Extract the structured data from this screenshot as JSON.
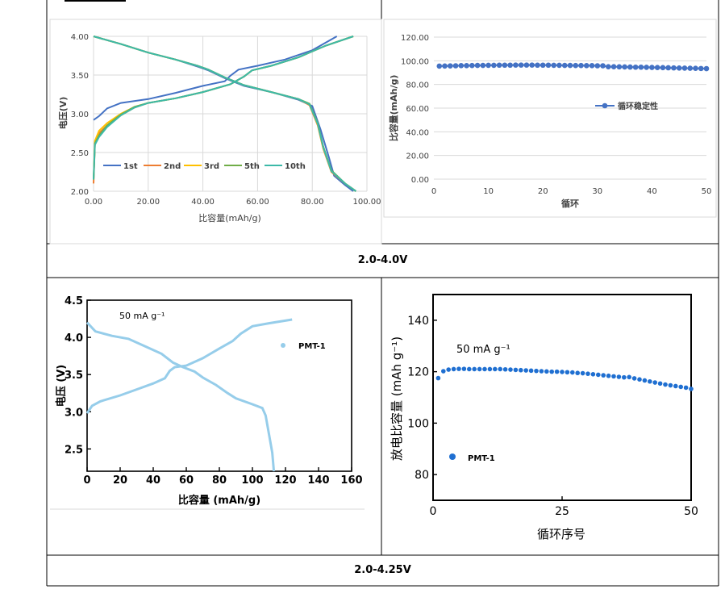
{
  "captions": {
    "row1": "2.0-4.0V",
    "row2": "2.0-4.25V"
  },
  "chart_data": [
    {
      "type": "line",
      "xlabel": "比容量(mAh/g)",
      "ylabel": "电压(V)",
      "xlim": [
        0,
        100
      ],
      "ylim": [
        2.0,
        4.0
      ],
      "x_ticks": [
        "0.00",
        "20.00",
        "40.00",
        "60.00",
        "80.00",
        "100.00"
      ],
      "y_ticks": [
        "2.00",
        "2.50",
        "3.00",
        "3.50",
        "4.00"
      ],
      "legend": "bottom-left",
      "grid": true,
      "series": [
        {
          "name": "1st",
          "color": "#4472C4",
          "charge": [
            [
              0,
              2.92
            ],
            [
              2,
              2.97
            ],
            [
              5,
              3.07
            ],
            [
              10,
              3.14
            ],
            [
              20,
              3.19
            ],
            [
              30,
              3.27
            ],
            [
              40,
              3.36
            ],
            [
              48,
              3.42
            ],
            [
              50,
              3.49
            ],
            [
              53,
              3.57
            ],
            [
              60,
              3.62
            ],
            [
              70,
              3.7
            ],
            [
              80,
              3.82
            ],
            [
              89,
              4.0
            ]
          ],
          "discharge": [
            [
              0,
              4.0
            ],
            [
              10,
              3.9
            ],
            [
              20,
              3.79
            ],
            [
              30,
              3.7
            ],
            [
              38,
              3.61
            ],
            [
              42,
              3.56
            ],
            [
              48,
              3.46
            ],
            [
              55,
              3.36
            ],
            [
              65,
              3.28
            ],
            [
              75,
              3.18
            ],
            [
              80,
              3.1
            ],
            [
              83,
              2.8
            ],
            [
              86,
              2.45
            ],
            [
              88,
              2.2
            ],
            [
              92,
              2.08
            ],
            [
              95,
              2.0
            ]
          ]
        },
        {
          "name": "2nd",
          "color": "#ED7D31",
          "charge": [
            [
              0,
              2.1
            ],
            [
              0.5,
              2.6
            ],
            [
              2,
              2.75
            ],
            [
              5,
              2.85
            ],
            [
              10,
              2.98
            ],
            [
              15,
              3.08
            ],
            [
              20,
              3.14
            ],
            [
              30,
              3.2
            ],
            [
              40,
              3.28
            ],
            [
              50,
              3.38
            ],
            [
              55,
              3.48
            ],
            [
              58,
              3.56
            ],
            [
              65,
              3.62
            ],
            [
              75,
              3.73
            ],
            [
              85,
              3.88
            ],
            [
              95,
              4.0
            ]
          ],
          "discharge": [
            [
              0,
              4.0
            ],
            [
              10,
              3.9
            ],
            [
              20,
              3.79
            ],
            [
              30,
              3.7
            ],
            [
              38,
              3.62
            ],
            [
              42,
              3.57
            ],
            [
              48,
              3.47
            ],
            [
              55,
              3.37
            ],
            [
              65,
              3.28
            ],
            [
              75,
              3.19
            ],
            [
              79,
              3.11
            ],
            [
              82,
              2.85
            ],
            [
              84,
              2.55
            ],
            [
              87,
              2.25
            ],
            [
              92,
              2.1
            ],
            [
              96,
              2.0
            ]
          ]
        },
        {
          "name": "3rd",
          "color": "#FFC000",
          "charge": [
            [
              0,
              2.15
            ],
            [
              0.5,
              2.65
            ],
            [
              2,
              2.78
            ],
            [
              5,
              2.88
            ],
            [
              10,
              3.0
            ],
            [
              15,
              3.09
            ],
            [
              20,
              3.14
            ],
            [
              30,
              3.2
            ],
            [
              40,
              3.28
            ],
            [
              50,
              3.38
            ],
            [
              55,
              3.48
            ],
            [
              58,
              3.56
            ],
            [
              65,
              3.62
            ],
            [
              75,
              3.73
            ],
            [
              85,
              3.88
            ],
            [
              95,
              4.0
            ]
          ],
          "discharge": [
            [
              0,
              4.0
            ],
            [
              10,
              3.9
            ],
            [
              20,
              3.79
            ],
            [
              30,
              3.7
            ],
            [
              38,
              3.62
            ],
            [
              42,
              3.57
            ],
            [
              48,
              3.47
            ],
            [
              55,
              3.37
            ],
            [
              65,
              3.28
            ],
            [
              75,
              3.19
            ],
            [
              79,
              3.12
            ],
            [
              82,
              2.86
            ],
            [
              84,
              2.56
            ],
            [
              87,
              2.26
            ],
            [
              92,
              2.1
            ],
            [
              96,
              2.0
            ]
          ]
        },
        {
          "name": "5th",
          "color": "#70AD47",
          "charge": [
            [
              0,
              2.15
            ],
            [
              0.5,
              2.62
            ],
            [
              2,
              2.72
            ],
            [
              5,
              2.85
            ],
            [
              10,
              2.99
            ],
            [
              15,
              3.09
            ],
            [
              20,
              3.14
            ],
            [
              30,
              3.2
            ],
            [
              40,
              3.28
            ],
            [
              50,
              3.38
            ],
            [
              55,
              3.48
            ],
            [
              58,
              3.56
            ],
            [
              65,
              3.62
            ],
            [
              75,
              3.73
            ],
            [
              85,
              3.88
            ],
            [
              95,
              4.0
            ]
          ],
          "discharge": [
            [
              0,
              4.0
            ],
            [
              10,
              3.9
            ],
            [
              20,
              3.79
            ],
            [
              30,
              3.7
            ],
            [
              38,
              3.62
            ],
            [
              42,
              3.57
            ],
            [
              48,
              3.47
            ],
            [
              55,
              3.37
            ],
            [
              65,
              3.28
            ],
            [
              75,
              3.19
            ],
            [
              79,
              3.13
            ],
            [
              82,
              2.88
            ],
            [
              84,
              2.58
            ],
            [
              87,
              2.27
            ],
            [
              92,
              2.1
            ],
            [
              96,
              2.0
            ]
          ]
        },
        {
          "name": "10th",
          "color": "#3CB9A8",
          "charge": [
            [
              0,
              2.15
            ],
            [
              0.5,
              2.6
            ],
            [
              2,
              2.7
            ],
            [
              5,
              2.83
            ],
            [
              10,
              2.98
            ],
            [
              15,
              3.08
            ],
            [
              20,
              3.14
            ],
            [
              30,
              3.2
            ],
            [
              40,
              3.28
            ],
            [
              50,
              3.38
            ],
            [
              55,
              3.48
            ],
            [
              58,
              3.56
            ],
            [
              65,
              3.62
            ],
            [
              75,
              3.73
            ],
            [
              85,
              3.88
            ],
            [
              95,
              4.0
            ]
          ],
          "discharge": [
            [
              0,
              4.0
            ],
            [
              10,
              3.9
            ],
            [
              20,
              3.79
            ],
            [
              30,
              3.7
            ],
            [
              38,
              3.62
            ],
            [
              42,
              3.57
            ],
            [
              48,
              3.47
            ],
            [
              55,
              3.37
            ],
            [
              65,
              3.28
            ],
            [
              75,
              3.19
            ],
            [
              79,
              3.12
            ],
            [
              82,
              2.87
            ],
            [
              84,
              2.57
            ],
            [
              87,
              2.26
            ],
            [
              92,
              2.1
            ],
            [
              96,
              2.0
            ]
          ]
        }
      ]
    },
    {
      "type": "line",
      "xlabel": "循环",
      "ylabel": "比容量(mAh/g)",
      "xlim": [
        0,
        50
      ],
      "ylim": [
        0,
        120
      ],
      "x_ticks": [
        "0",
        "10",
        "20",
        "30",
        "40",
        "50"
      ],
      "y_ticks": [
        "0.00",
        "20.00",
        "40.00",
        "60.00",
        "80.00",
        "100.00",
        "120.00"
      ],
      "legend": "right",
      "grid": true,
      "series": [
        {
          "name": "循环稳定性",
          "color": "#4472C4",
          "x": [
            1,
            2,
            3,
            4,
            5,
            6,
            7,
            8,
            9,
            10,
            11,
            12,
            13,
            14,
            15,
            16,
            17,
            18,
            19,
            20,
            21,
            22,
            23,
            24,
            25,
            26,
            27,
            28,
            29,
            30,
            31,
            32,
            33,
            34,
            35,
            36,
            37,
            38,
            39,
            40,
            41,
            42,
            43,
            44,
            45,
            46,
            47,
            48,
            49,
            50
          ],
          "values": [
            95.5,
            95.6,
            95.7,
            95.8,
            95.9,
            95.9,
            96.0,
            96.1,
            96.1,
            96.2,
            96.2,
            96.3,
            96.3,
            96.3,
            96.4,
            96.4,
            96.4,
            96.4,
            96.3,
            96.3,
            96.3,
            96.2,
            96.2,
            96.1,
            96.1,
            96.0,
            96.0,
            95.9,
            95.9,
            95.8,
            95.8,
            95.0,
            95.0,
            94.9,
            94.8,
            94.7,
            94.6,
            94.6,
            94.5,
            94.4,
            94.3,
            94.2,
            94.1,
            94.0,
            93.9,
            93.8,
            93.7,
            93.6,
            93.5,
            93.4
          ]
        }
      ]
    },
    {
      "type": "line",
      "xlabel": "比容量 (mAh/g)",
      "ylabel": "电压 (V)",
      "annotation": "50 mA g⁻¹",
      "xlim": [
        0,
        160
      ],
      "ylim": [
        2.2,
        4.5
      ],
      "x_ticks": [
        "0",
        "20",
        "40",
        "60",
        "80",
        "100",
        "120",
        "140",
        "160"
      ],
      "y_ticks": [
        "2.5",
        "3.0",
        "3.5",
        "4.0",
        "4.5"
      ],
      "legend": "top-right",
      "grid": false,
      "series": [
        {
          "name": "PMT-1",
          "color": "#96CDEA",
          "charge": [
            [
              0,
              2.98
            ],
            [
              3,
              3.08
            ],
            [
              8,
              3.14
            ],
            [
              20,
              3.22
            ],
            [
              30,
              3.3
            ],
            [
              40,
              3.38
            ],
            [
              47,
              3.45
            ],
            [
              50,
              3.55
            ],
            [
              53,
              3.6
            ],
            [
              60,
              3.62
            ],
            [
              70,
              3.72
            ],
            [
              80,
              3.85
            ],
            [
              88,
              3.95
            ],
            [
              93,
              4.05
            ],
            [
              100,
              4.15
            ],
            [
              110,
              4.19
            ],
            [
              124,
              4.24
            ]
          ],
          "discharge": [
            [
              0,
              4.2
            ],
            [
              5,
              4.08
            ],
            [
              15,
              4.02
            ],
            [
              25,
              3.98
            ],
            [
              35,
              3.88
            ],
            [
              45,
              3.78
            ],
            [
              52,
              3.66
            ],
            [
              58,
              3.6
            ],
            [
              65,
              3.54
            ],
            [
              70,
              3.46
            ],
            [
              78,
              3.36
            ],
            [
              85,
              3.25
            ],
            [
              90,
              3.18
            ],
            [
              100,
              3.1
            ],
            [
              106,
              3.05
            ],
            [
              108,
              2.95
            ],
            [
              110,
              2.7
            ],
            [
              112,
              2.45
            ],
            [
              113,
              2.2
            ]
          ]
        }
      ]
    },
    {
      "type": "scatter",
      "xlabel": "循环序号",
      "ylabel": "放电比容量 (mAh g⁻¹)",
      "annotation": "50 mA g⁻¹",
      "xlim": [
        0,
        50
      ],
      "ylim": [
        70,
        150
      ],
      "x_ticks": [
        "0",
        "25",
        "50"
      ],
      "y_ticks": [
        "80",
        "100",
        "120",
        "140"
      ],
      "legend": "bottom-left",
      "grid": false,
      "series": [
        {
          "name": "PMT-1",
          "color": "#1F6FD1",
          "x": [
            1,
            2,
            3,
            4,
            5,
            6,
            7,
            8,
            9,
            10,
            11,
            12,
            13,
            14,
            15,
            16,
            17,
            18,
            19,
            20,
            21,
            22,
            23,
            24,
            25,
            26,
            27,
            28,
            29,
            30,
            31,
            32,
            33,
            34,
            35,
            36,
            37,
            38,
            39,
            40,
            41,
            42,
            43,
            44,
            45,
            46,
            47,
            48,
            49,
            50
          ],
          "values": [
            117.5,
            120.2,
            120.8,
            121.0,
            121.1,
            121.1,
            121.0,
            121.0,
            121.0,
            121.0,
            121.0,
            121.0,
            121.0,
            120.9,
            120.8,
            120.7,
            120.6,
            120.5,
            120.4,
            120.3,
            120.2,
            120.1,
            120.0,
            120.0,
            119.9,
            119.8,
            119.7,
            119.5,
            119.4,
            119.2,
            119.0,
            118.8,
            118.6,
            118.4,
            118.2,
            118.0,
            117.8,
            117.9,
            117.4,
            117.0,
            116.6,
            116.2,
            115.8,
            115.4,
            115.0,
            114.7,
            114.4,
            114.1,
            113.8,
            113.3
          ]
        }
      ]
    }
  ]
}
